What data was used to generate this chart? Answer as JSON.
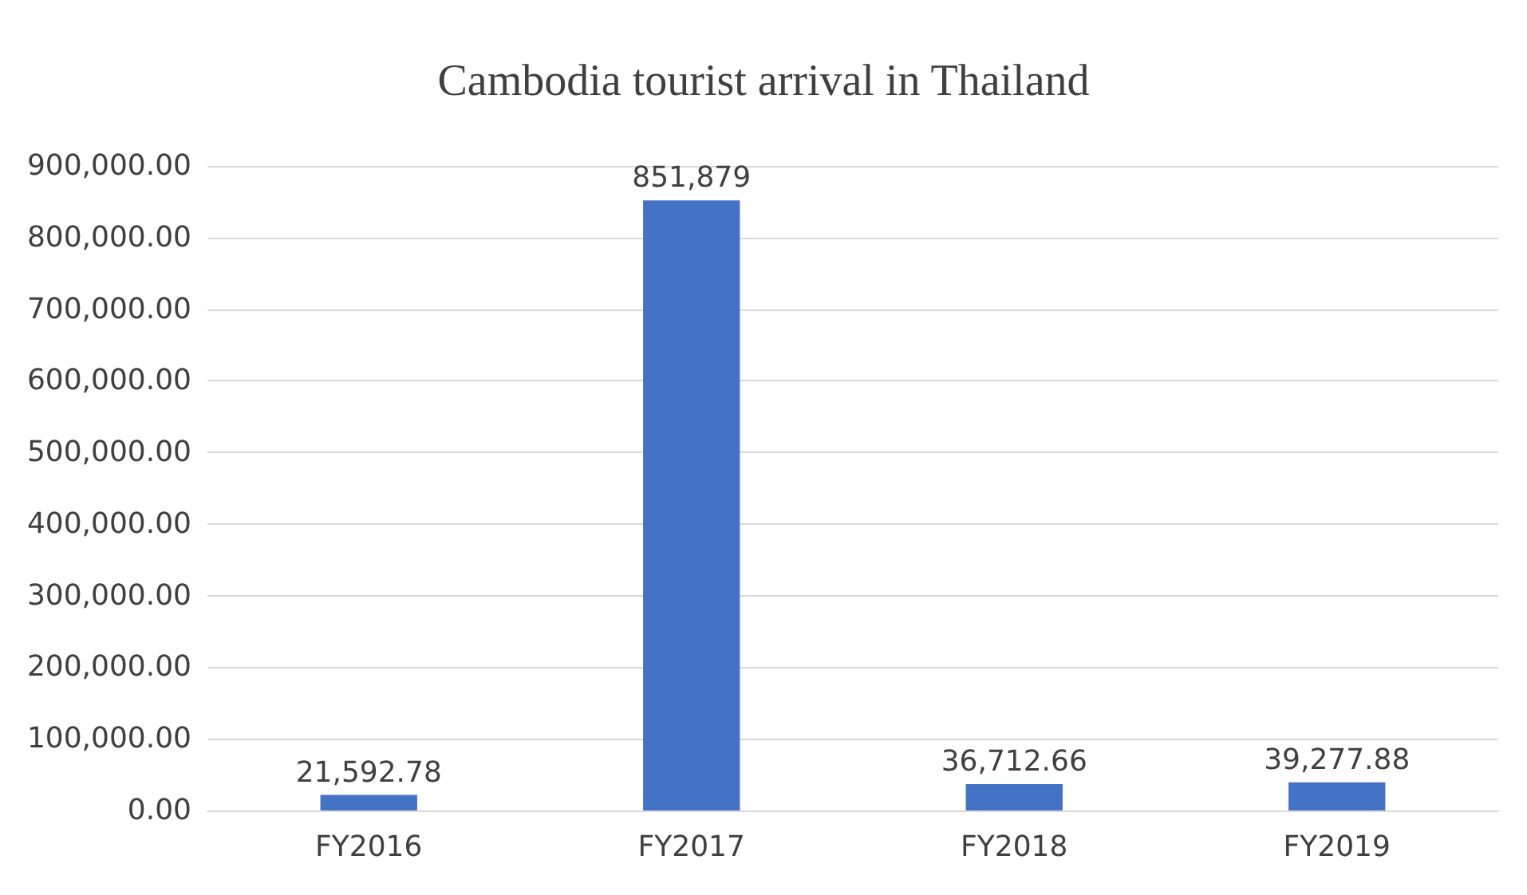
{
  "chart_data": {
    "type": "bar",
    "title": "Cambodia tourist arrival in Thailand",
    "categories": [
      "FY2016",
      "FY2017",
      "FY2018",
      "FY2019"
    ],
    "values": [
      21592.78,
      851879,
      36712.66,
      39277.88
    ],
    "value_labels": [
      "21,592.78",
      "851,879",
      "36,712.66",
      "39,277.88"
    ],
    "color": "#4472c4",
    "ylim": [
      0,
      900000
    ],
    "yticks": [
      {
        "value": 0,
        "label": "0.00"
      },
      {
        "value": 100000,
        "label": "100,000.00"
      },
      {
        "value": 200000,
        "label": "200,000.00"
      },
      {
        "value": 300000,
        "label": "300,000.00"
      },
      {
        "value": 400000,
        "label": "400,000.00"
      },
      {
        "value": 500000,
        "label": "500,000.00"
      },
      {
        "value": 600000,
        "label": "600,000.00"
      },
      {
        "value": 700000,
        "label": "700,000.00"
      },
      {
        "value": 800000,
        "label": "800,000.00"
      },
      {
        "value": 900000,
        "label": "900,000.00"
      }
    ],
    "grid": "y"
  }
}
